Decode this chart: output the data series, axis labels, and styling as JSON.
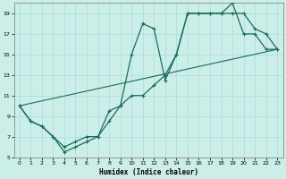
{
  "xlabel": "Humidex (Indice chaleur)",
  "bg_color": "#cceee8",
  "line_color": "#1a6b5a",
  "grid_color": "#aaddda",
  "xlim": [
    -0.5,
    23.5
  ],
  "ylim": [
    5,
    20
  ],
  "yticks": [
    5,
    7,
    9,
    11,
    13,
    15,
    17,
    19
  ],
  "xticks": [
    0,
    1,
    2,
    3,
    4,
    5,
    6,
    7,
    8,
    9,
    10,
    11,
    12,
    13,
    14,
    15,
    16,
    17,
    18,
    19,
    20,
    21,
    22,
    23
  ],
  "line1_x": [
    0,
    1,
    2,
    3,
    4,
    5,
    6,
    7,
    8,
    9,
    10,
    11,
    12,
    13,
    14,
    15,
    16,
    17,
    18,
    19,
    20,
    21,
    22,
    23
  ],
  "line1_y": [
    10,
    8.5,
    8,
    7,
    6,
    6.5,
    7,
    7,
    9.5,
    10,
    11,
    11,
    12,
    13,
    15,
    19,
    19,
    19,
    19,
    19,
    19,
    17.5,
    17,
    15.5
  ],
  "line2_x": [
    0,
    1,
    2,
    3,
    4,
    5,
    6,
    7,
    8,
    9,
    10,
    11,
    12,
    13,
    14,
    15,
    16,
    17,
    18,
    19,
    20,
    21,
    22,
    23
  ],
  "line2_y": [
    10,
    8.5,
    8,
    7,
    5.5,
    6,
    6.5,
    7,
    8.5,
    10,
    15,
    18,
    17.5,
    12.5,
    15,
    19,
    19,
    19,
    19,
    20,
    17,
    17,
    15.5,
    15.5
  ],
  "line3_x": [
    0,
    23
  ],
  "line3_y": [
    10,
    15.5
  ]
}
